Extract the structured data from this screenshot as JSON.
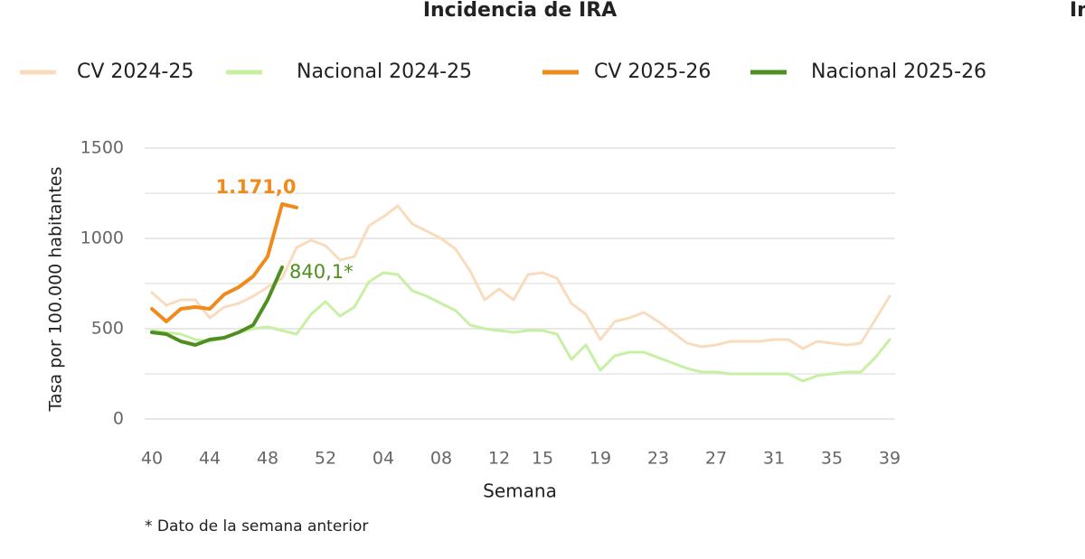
{
  "chart_data": {
    "type": "line",
    "title": "Incidencia de IRA",
    "clipped_title": "In",
    "x_label": "Semana",
    "y_label": "Tasa por 100.000 habitantes",
    "footnote": "* Dato de la semana anterior",
    "categories": [
      "40",
      null,
      null,
      null,
      "44",
      null,
      null,
      null,
      "48",
      null,
      null,
      null,
      "52",
      null,
      null,
      null,
      "04",
      null,
      null,
      null,
      "08",
      null,
      null,
      null,
      "12",
      null,
      null,
      "15",
      null,
      null,
      null,
      "19",
      null,
      null,
      null,
      "23",
      null,
      null,
      null,
      "27",
      null,
      null,
      null,
      "31",
      null,
      null,
      null,
      "35",
      null,
      null,
      null,
      "39"
    ],
    "series": [
      {
        "name": "CV 2024-25",
        "color": "#f9dcbd",
        "width": 3,
        "values": [
          700,
          630,
          660,
          660,
          560,
          620,
          640,
          680,
          730,
          780,
          950,
          990,
          960,
          880,
          900,
          1070,
          1120,
          1180,
          1080,
          1040,
          1000,
          940,
          820,
          660,
          720,
          660,
          800,
          810,
          780,
          640,
          580,
          440,
          540,
          560,
          590,
          540,
          480,
          420,
          400,
          410,
          430,
          430,
          430,
          440,
          440,
          390,
          430,
          420,
          410,
          420,
          550,
          680
        ]
      },
      {
        "name": "Nacional 2024-25",
        "color": "#c8f0a4",
        "width": 3,
        "values": [
          490,
          480,
          470,
          440,
          430,
          450,
          480,
          500,
          510,
          490,
          470,
          580,
          650,
          570,
          620,
          760,
          810,
          800,
          710,
          680,
          640,
          600,
          520,
          500,
          490,
          480,
          490,
          490,
          470,
          330,
          410,
          270,
          350,
          370,
          370,
          340,
          310,
          280,
          260,
          260,
          250,
          250,
          250,
          250,
          250,
          210,
          240,
          250,
          260,
          260,
          340,
          440
        ]
      },
      {
        "name": "CV 2025-26",
        "color": "#ef8a1d",
        "width": 4,
        "values": [
          610,
          540,
          610,
          620,
          610,
          690,
          730,
          790,
          900,
          1190,
          1171,
          null,
          null,
          null,
          null,
          null,
          null,
          null,
          null,
          null,
          null,
          null,
          null,
          null,
          null,
          null,
          null,
          null,
          null,
          null,
          null,
          null,
          null,
          null,
          null,
          null,
          null,
          null,
          null,
          null,
          null,
          null,
          null,
          null,
          null,
          null,
          null,
          null,
          null,
          null,
          null,
          null
        ],
        "value_labels": [
          null,
          null,
          null,
          null,
          null,
          null,
          null,
          null,
          null,
          null,
          "1.171,0",
          null,
          null,
          null,
          null,
          null,
          null,
          null,
          null,
          null,
          null,
          null,
          null,
          null,
          null,
          null,
          null,
          null,
          null,
          null,
          null,
          null,
          null,
          null,
          null,
          null,
          null,
          null,
          null,
          null,
          null,
          null,
          null,
          null,
          null,
          null,
          null,
          null,
          null,
          null,
          null,
          null
        ]
      },
      {
        "name": "Nacional 2025-26",
        "color": "#4e8f1f",
        "width": 4,
        "values": [
          480,
          470,
          430,
          410,
          440,
          450,
          480,
          520,
          660,
          840.1,
          null,
          null,
          null,
          null,
          null,
          null,
          null,
          null,
          null,
          null,
          null,
          null,
          null,
          null,
          null,
          null,
          null,
          null,
          null,
          null,
          null,
          null,
          null,
          null,
          null,
          null,
          null,
          null,
          null,
          null,
          null,
          null,
          null,
          null,
          null,
          null,
          null,
          null,
          null,
          null,
          null,
          null
        ],
        "value_labels": [
          null,
          null,
          null,
          null,
          null,
          null,
          null,
          null,
          null,
          "840,1*",
          null,
          null,
          null,
          null,
          null,
          null,
          null,
          null,
          null,
          null,
          null,
          null,
          null,
          null,
          null,
          null,
          null,
          null,
          null,
          null,
          null,
          null,
          null,
          null,
          null,
          null,
          null,
          null,
          null,
          null,
          null,
          null,
          null,
          null,
          null,
          null,
          null,
          null,
          null,
          null,
          null,
          null
        ]
      }
    ],
    "ylim": [
      0,
      1500
    ],
    "yticks": [
      0,
      500,
      1000,
      1500
    ],
    "y_minor_gridlines": [
      250,
      750,
      1250
    ],
    "grid": true,
    "legend": "top"
  }
}
